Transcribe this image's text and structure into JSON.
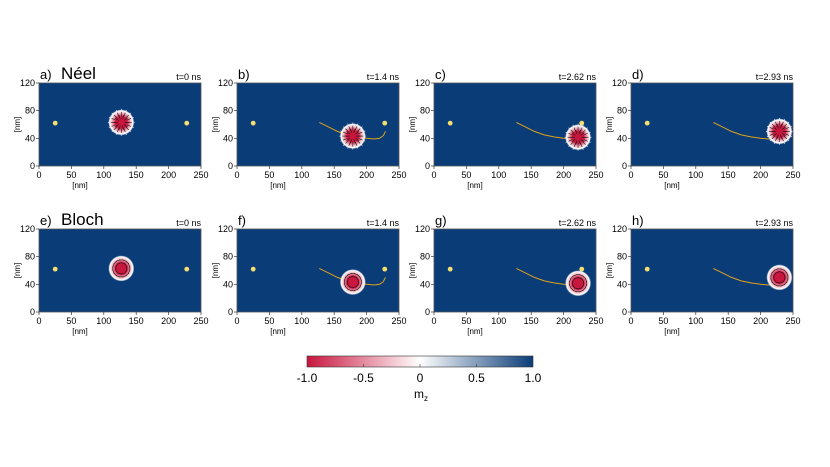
{
  "figure": {
    "rows": [
      {
        "title": "Néel",
        "skyrmion": "neel",
        "panels": [
          {
            "letter": "a)",
            "time": "t=0 ns",
            "progress": 0.0
          },
          {
            "letter": "b)",
            "time": "t=1.4 ns",
            "progress": 0.5
          },
          {
            "letter": "c)",
            "time": "t=2.62 ns",
            "progress": 0.9
          },
          {
            "letter": "d)",
            "time": "t=2.93 ns",
            "progress": 1.0
          }
        ]
      },
      {
        "title": "Bloch",
        "skyrmion": "bloch",
        "panels": [
          {
            "letter": "e)",
            "time": "t=0 ns",
            "progress": 0.0
          },
          {
            "letter": "f)",
            "time": "t=1.4 ns",
            "progress": 0.5
          },
          {
            "letter": "g)",
            "time": "t=2.62 ns",
            "progress": 0.9
          },
          {
            "letter": "h)",
            "time": "t=2.93 ns",
            "progress": 1.0
          }
        ]
      }
    ],
    "axes": {
      "xlabel": "[nm]",
      "ylabel": "[nm]",
      "xticks": [
        0,
        50,
        100,
        150,
        200,
        250
      ],
      "yticks": [
        0,
        40,
        80,
        120
      ],
      "xlim": [
        0,
        250
      ],
      "ylim": [
        0,
        120
      ]
    },
    "trajectory": [
      [
        127,
        63
      ],
      [
        140,
        57
      ],
      [
        155,
        50
      ],
      [
        170,
        45
      ],
      [
        185,
        42
      ],
      [
        200,
        40
      ],
      [
        212,
        39
      ],
      [
        220,
        40
      ],
      [
        226,
        44
      ],
      [
        229,
        50
      ]
    ],
    "markers": [
      [
        25,
        62
      ],
      [
        228,
        62
      ]
    ],
    "colorbar": {
      "ticks": [
        "-1.0",
        "-0.5",
        "0",
        "0.5",
        "1.0"
      ],
      "label": "m",
      "label_sub": "z"
    },
    "colors": {
      "background_mz_up": "#0a3c78",
      "core_mz_down": "#c8163e",
      "trajectory": "#e0a21a",
      "marker": "#f5dd6e",
      "colorbar_low": "#c8163e",
      "colorbar_mid": "#ffffff",
      "colorbar_high": "#0a3c78"
    }
  }
}
